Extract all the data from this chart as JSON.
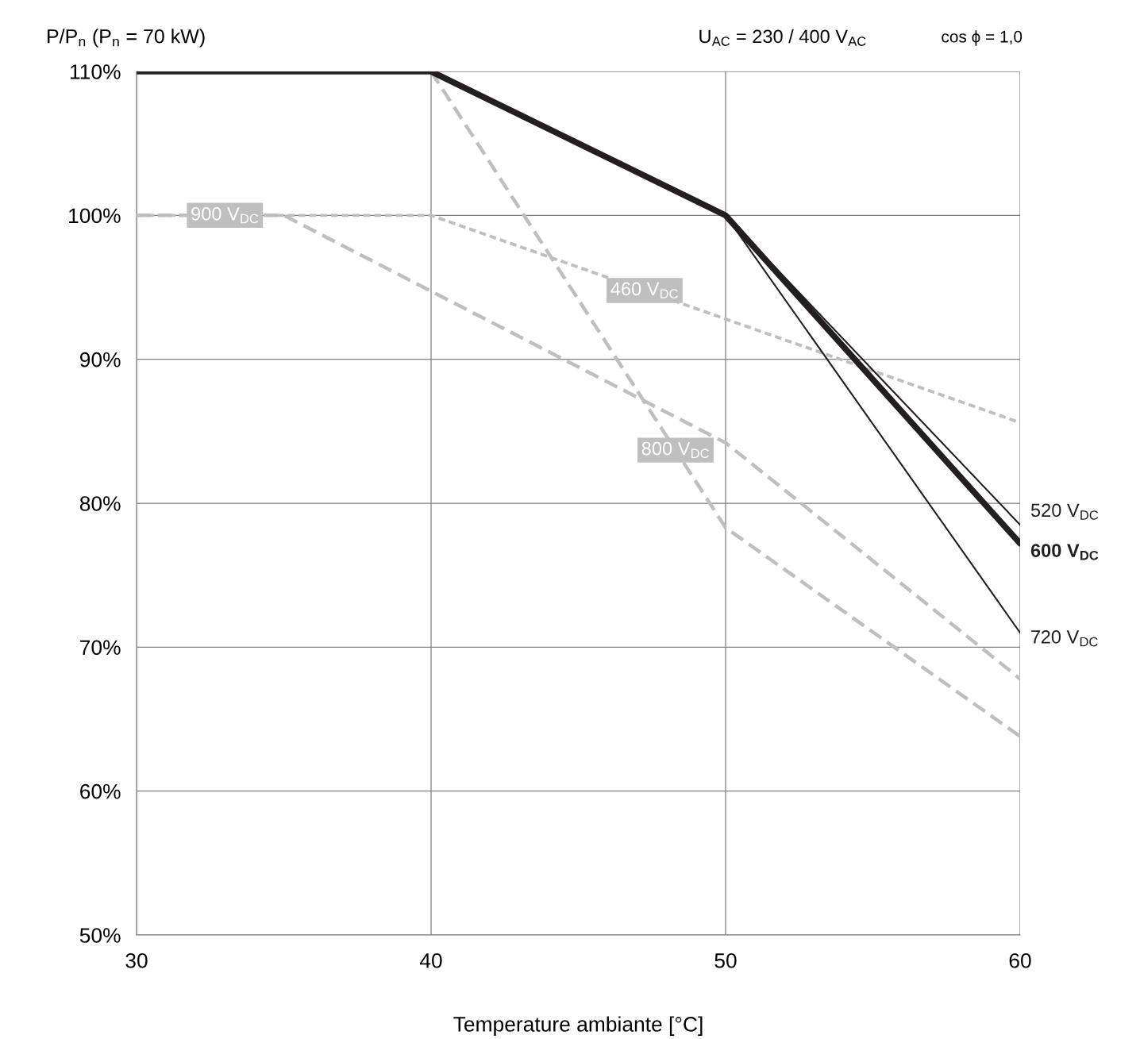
{
  "chart_data": {
    "type": "line",
    "ylabel": "P/P$_{n}$ (P$_{n}$ = 70 kW)",
    "xlabel": "Temperature ambiante [°C]",
    "annotations": [
      "U$_{AC}$ = 230 / 400 V$_{AC}$",
      "cos ϕ = 1,0"
    ],
    "xlim": [
      30,
      60
    ],
    "xticks": [
      30,
      40,
      50,
      60
    ],
    "ylim": [
      50,
      110
    ],
    "yticks": [
      {
        "value": 50,
        "label": "50%"
      },
      {
        "value": 60,
        "label": "60%"
      },
      {
        "value": 70,
        "label": "70%"
      },
      {
        "value": 80,
        "label": "80%"
      },
      {
        "value": 90,
        "label": "90%"
      },
      {
        "value": 100,
        "label": "100%"
      },
      {
        "value": 110,
        "label": "110%"
      }
    ],
    "grid": true,
    "legend": false,
    "marker": "none",
    "series": [
      {
        "name": "460 V$_{DC}$",
        "color": "#bfbfbf",
        "line_style": "dashed",
        "x": [
          30,
          40,
          60
        ],
        "values": [
          100,
          100,
          85.6
        ]
      },
      {
        "name": "520 V$_{DC}$",
        "color": "#231f20",
        "line_style": "solid",
        "x": [
          50,
          60
        ],
        "values": [
          100,
          78.5
        ]
      },
      {
        "name": "600 V$_{DC}$",
        "color": "#231f20",
        "line_style": "solid",
        "x": [
          30,
          40,
          50,
          60
        ],
        "values": [
          110,
          110,
          100,
          77.2
        ]
      },
      {
        "name": "720 V$_{DC}$",
        "color": "#231f20",
        "line_style": "solid",
        "x": [
          50,
          60
        ],
        "values": [
          100,
          71
        ]
      },
      {
        "name": "800 V$_{DC}$",
        "color": "#bfbfbf",
        "line_style": "dashed",
        "x": [
          40,
          50,
          60
        ],
        "values": [
          110,
          78.3,
          63.8
        ]
      },
      {
        "name": "900 V$_{DC}$",
        "color": "#bfbfbf",
        "line_style": "dashed",
        "x": [
          30,
          35,
          50,
          60
        ],
        "values": [
          100,
          100,
          84.2,
          67.8
        ]
      }
    ]
  }
}
